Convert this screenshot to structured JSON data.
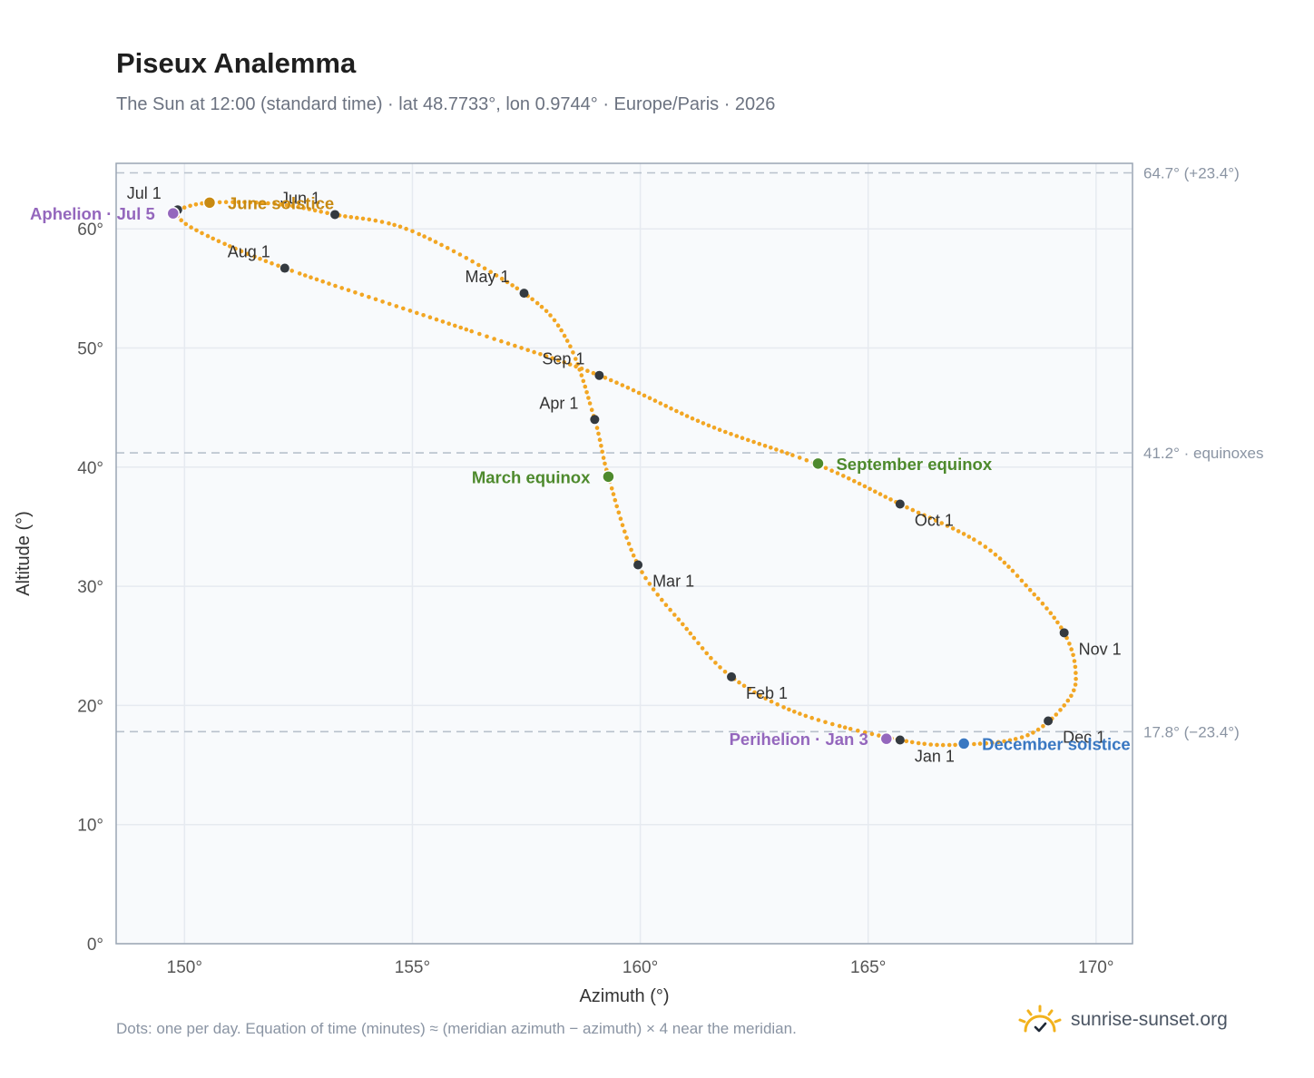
{
  "title": "Piseux Analemma",
  "subtitle": "The Sun at 12:00 (standard time) · lat 48.7733°, lon 0.9744° · Europe/Paris · 2026",
  "footnote": "Dots: one per day. Equation of time (minutes) ≈ (meridian azimuth − azimuth) × 4 near the meridian.",
  "brand": {
    "name": "sunrise-sunset.org",
    "logo_icon": "sun-check-icon"
  },
  "colors": {
    "curve": "#f2a623",
    "month_marker": "#343a40",
    "june_solstice": "#c88a12",
    "december_solstice": "#3a78c2",
    "equinox": "#4e8a2d",
    "apsis": "#9467bd",
    "reference_line": "#b8c1cc",
    "plot_bg": "#f8fafc",
    "grid": "#e6eaf0"
  },
  "chart_data": {
    "type": "scatter",
    "xlabel": "Azimuth (°)",
    "ylabel": "Altitude (°)",
    "xlim": [
      148.5,
      170.8
    ],
    "ylim": [
      0,
      65.5
    ],
    "xticks": [
      150,
      155,
      160,
      165,
      170
    ],
    "yticks": [
      0,
      10,
      20,
      30,
      40,
      50,
      60
    ],
    "tick_suffix": "°",
    "grid": true,
    "series": [
      {
        "marker": "one dot per day",
        "anchors": [
          [
            165.7,
            17.1
          ],
          [
            167.0,
            16.7
          ],
          [
            168.5,
            17.5
          ],
          [
            169.4,
            20.5
          ],
          [
            169.55,
            23.0
          ],
          [
            169.3,
            26.1
          ],
          [
            168.6,
            29.5
          ],
          [
            167.5,
            33.5
          ],
          [
            165.7,
            36.9
          ],
          [
            163.9,
            40.2
          ],
          [
            161.5,
            43.5
          ],
          [
            159.1,
            47.7
          ],
          [
            156.3,
            51.4
          ],
          [
            152.2,
            56.7
          ],
          [
            150.3,
            59.8
          ],
          [
            149.8,
            61.3
          ],
          [
            149.85,
            61.6
          ],
          [
            150.55,
            62.2
          ],
          [
            152.0,
            62.1
          ],
          [
            153.3,
            61.2
          ],
          [
            155.0,
            59.8
          ],
          [
            157.45,
            54.6
          ],
          [
            158.4,
            50.6
          ],
          [
            159.0,
            44.0
          ],
          [
            159.3,
            39.2
          ],
          [
            159.95,
            31.8
          ],
          [
            161.0,
            26.5
          ],
          [
            162.0,
            22.4
          ],
          [
            163.5,
            19.3
          ],
          [
            165.7,
            17.1
          ]
        ]
      }
    ],
    "month_markers": [
      {
        "label": "Jan 1",
        "x": 165.7,
        "y": 17.1
      },
      {
        "label": "Feb 1",
        "x": 162.0,
        "y": 22.4
      },
      {
        "label": "Mar 1",
        "x": 159.95,
        "y": 31.8
      },
      {
        "label": "Apr 1",
        "x": 159.0,
        "y": 44.0
      },
      {
        "label": "May 1",
        "x": 157.45,
        "y": 54.6
      },
      {
        "label": "Jun 1",
        "x": 153.3,
        "y": 61.2
      },
      {
        "label": "Jul 1",
        "x": 149.85,
        "y": 61.6
      },
      {
        "label": "Aug 1",
        "x": 152.2,
        "y": 56.7
      },
      {
        "label": "Sep 1",
        "x": 159.1,
        "y": 47.7
      },
      {
        "label": "Oct 1",
        "x": 165.7,
        "y": 36.9
      },
      {
        "label": "Nov 1",
        "x": 169.3,
        "y": 26.1
      },
      {
        "label": "Dec 1",
        "x": 168.95,
        "y": 18.7
      }
    ],
    "events": [
      {
        "label": "June solstice",
        "x": 150.55,
        "y": 62.2,
        "color_key": "june_solstice"
      },
      {
        "label": "December solstice",
        "x": 167.1,
        "y": 16.8,
        "color_key": "december_solstice"
      },
      {
        "label": "March equinox",
        "x": 159.3,
        "y": 39.2,
        "color_key": "equinox"
      },
      {
        "label": "September equinox",
        "x": 163.9,
        "y": 40.3,
        "color_key": "equinox"
      },
      {
        "label": "Aphelion · Jul 5",
        "x": 149.75,
        "y": 61.3,
        "color_key": "apsis"
      },
      {
        "label": "Perihelion · Jan 3",
        "x": 165.4,
        "y": 17.2,
        "color_key": "apsis"
      }
    ],
    "reference_lines": [
      {
        "y": 64.7,
        "label": "64.7° (+23.4°)"
      },
      {
        "y": 41.2,
        "label": "41.2° · equinoxes"
      },
      {
        "y": 17.8,
        "label": "17.8° (−23.4°)"
      }
    ]
  }
}
